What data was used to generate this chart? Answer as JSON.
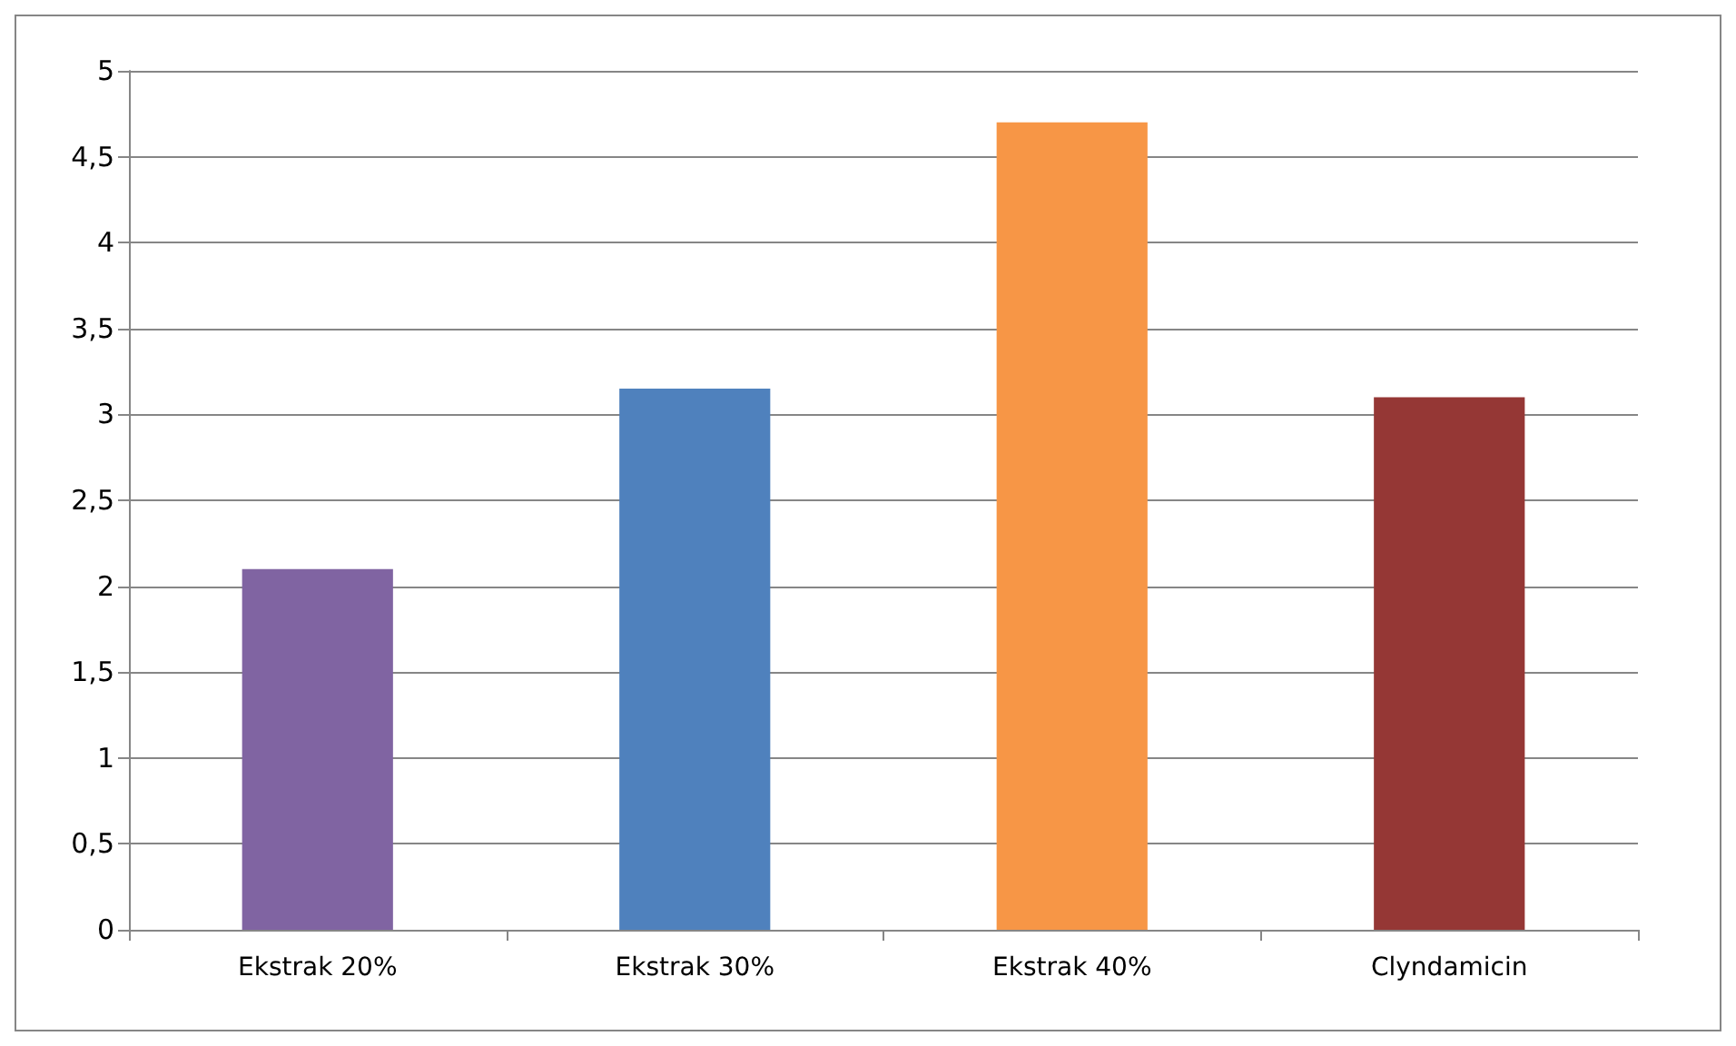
{
  "chart_data": {
    "type": "bar",
    "categories": [
      "Ekstrak 20%",
      "Ekstrak 30%",
      "Ekstrak 40%",
      "Clyndamicin"
    ],
    "values": [
      2.1,
      3.15,
      4.7,
      3.1
    ],
    "colors": [
      "#8064a2",
      "#4f81bd",
      "#f79646",
      "#953735"
    ],
    "ylim": [
      0,
      5
    ],
    "yticks": [
      0,
      {
        "value": 0.5,
        "label": "0,5"
      },
      1,
      {
        "value": 1.5,
        "label": "1,5"
      },
      2,
      {
        "value": 2.5,
        "label": "2,5"
      },
      3,
      {
        "value": 3.5,
        "label": "3,5"
      },
      4,
      {
        "value": 4.5,
        "label": "4,5"
      },
      5
    ],
    "grid": "y"
  }
}
